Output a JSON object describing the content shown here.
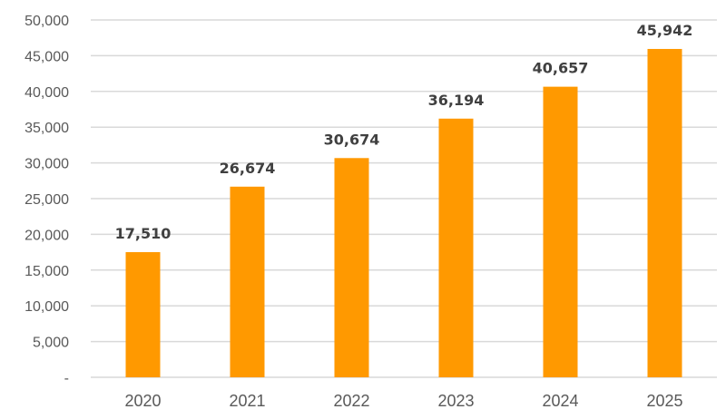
{
  "chart_data": {
    "type": "bar",
    "categories": [
      "2020",
      "2021",
      "2022",
      "2023",
      "2024",
      "2025"
    ],
    "values": [
      17510,
      26674,
      30674,
      36194,
      40657,
      45942
    ],
    "data_labels": [
      "17,510",
      "26,674",
      "30,674",
      "36,194",
      "40,657",
      "45,942"
    ],
    "title": "",
    "xlabel": "",
    "ylabel": "",
    "ylim": [
      0,
      50000
    ],
    "y_ticks": [
      0,
      5000,
      10000,
      15000,
      20000,
      25000,
      30000,
      35000,
      40000,
      45000,
      50000
    ],
    "y_tick_labels": [
      "-",
      "5,000",
      "10,000",
      "15,000",
      "20,000",
      "25,000",
      "30,000",
      "35,000",
      "40,000",
      "45,000",
      "50,000"
    ],
    "grid": true,
    "legend": "none",
    "colors": {
      "bar": "#ff9900",
      "grid": "#d9d9d9",
      "axis_text": "#595959",
      "data_label_text": "#404040"
    }
  }
}
